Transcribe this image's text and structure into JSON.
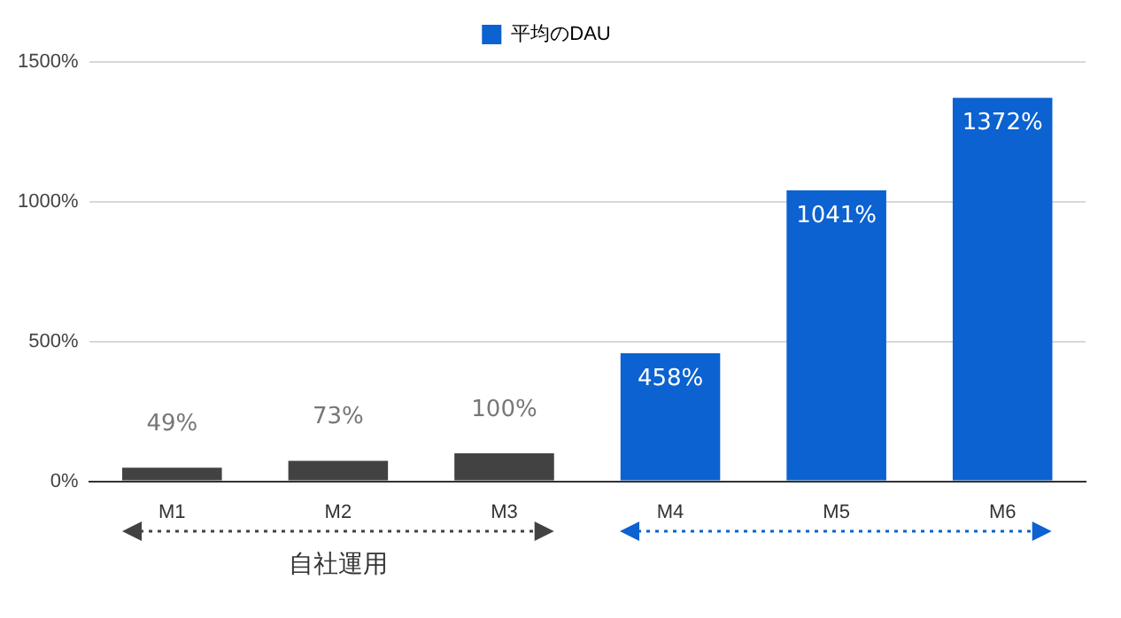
{
  "chart_data": {
    "type": "bar",
    "categories": [
      "M1",
      "M2",
      "M3",
      "M4",
      "M5",
      "M6"
    ],
    "series": [
      {
        "name": "平均のDAU",
        "color": "#0b62d0",
        "colors": [
          "#424242",
          "#424242",
          "#424242",
          "#0b62d0",
          "#0b62d0",
          "#0b62d0"
        ],
        "values": [
          49,
          73,
          100,
          458,
          1041,
          1372
        ],
        "value_labels": [
          "49%",
          "73%",
          "100%",
          "458%",
          "1041%",
          "1372%"
        ]
      }
    ],
    "ylim": [
      0,
      1500
    ],
    "yticks": [
      {
        "value": 0,
        "label": "0%"
      },
      {
        "value": 500,
        "label": "500%"
      },
      {
        "value": 1000,
        "label": "1000%"
      },
      {
        "value": 1500,
        "label": "1500%"
      }
    ],
    "grid": "y",
    "legend": "top",
    "annotations": [
      "自社運用"
    ]
  }
}
